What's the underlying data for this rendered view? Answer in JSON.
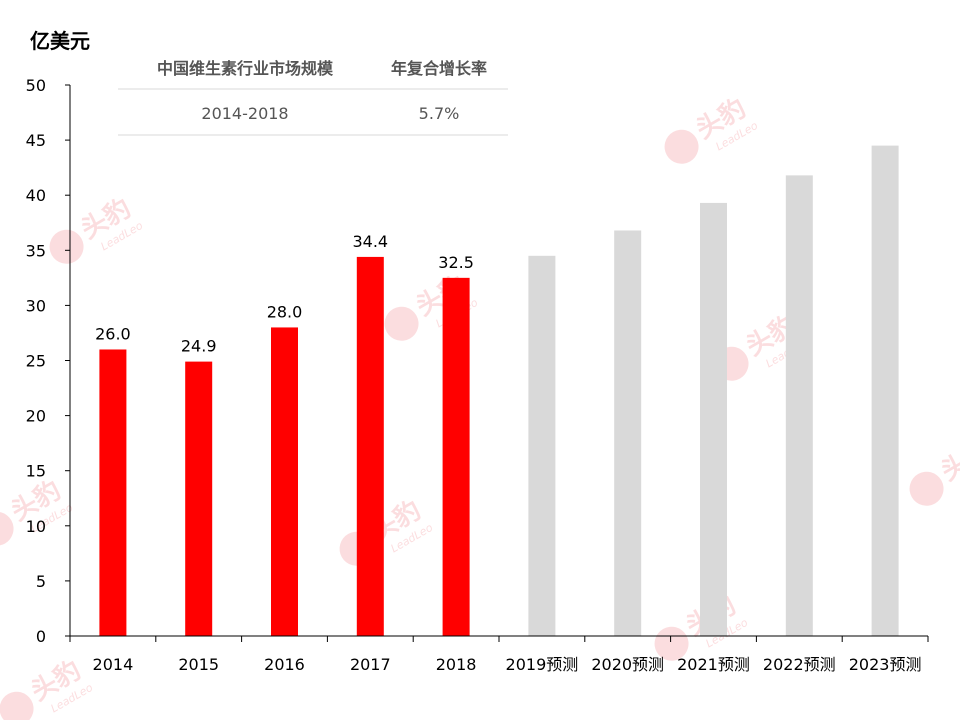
{
  "chart_data": {
    "type": "bar",
    "unit_label": "亿美元",
    "categories": [
      "2014",
      "2015",
      "2016",
      "2017",
      "2018",
      "2019预测",
      "2020预测",
      "2021预测",
      "2022预测",
      "2023预测"
    ],
    "series": [
      {
        "values": [
          26.0,
          24.9,
          28.0,
          34.4,
          32.5,
          null,
          null,
          null,
          null,
          null
        ],
        "color": "#ff0000",
        "show_labels": true
      },
      {
        "values": [
          null,
          null,
          null,
          null,
          null,
          34.5,
          36.8,
          39.3,
          41.8,
          44.5
        ],
        "color": "#d9d9d9",
        "show_labels": false
      }
    ],
    "ylim": [
      0,
      50
    ],
    "yticks": [
      0,
      5,
      10,
      15,
      20,
      25,
      30,
      35,
      40,
      45,
      50
    ],
    "grid": false,
    "legend": "none"
  },
  "summary_table": {
    "headers": [
      "中国维生素行业市场规模",
      "年复合增长率"
    ],
    "row": [
      "2014-2018",
      "5.7%"
    ]
  },
  "watermark": {
    "cn": "头豹",
    "en": "LeadLeo"
  }
}
